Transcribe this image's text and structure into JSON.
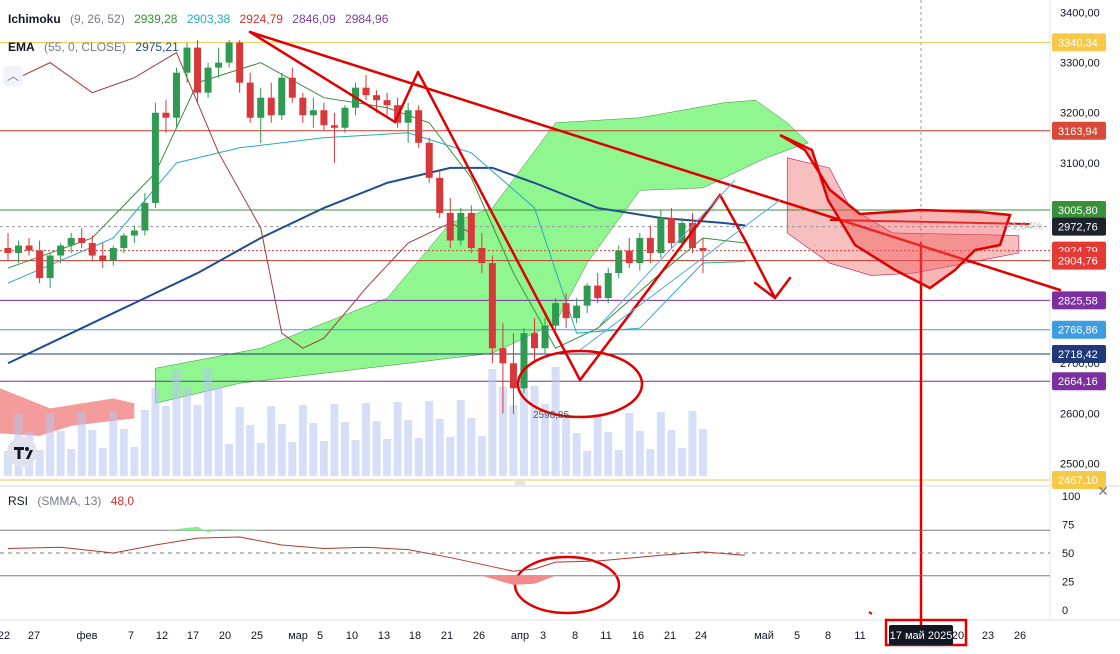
{
  "ichimoku": {
    "name": "Ichimoku",
    "params": "(9, 26, 52)",
    "values": [
      {
        "text": "2939,28",
        "color": "#3b8c3b"
      },
      {
        "text": "2903,38",
        "color": "#2aa8c8"
      },
      {
        "text": "2924,79",
        "color": "#d32f2f"
      },
      {
        "text": "2846,09",
        "color": "#7b3f9e"
      },
      {
        "text": "2984,96",
        "color": "#7b3f9e"
      }
    ]
  },
  "ema": {
    "name": "EMA",
    "params": "(55, 0, CLOSE)",
    "value": "2975,21",
    "color": "#1f4e8c"
  },
  "rsi": {
    "name": "RSI",
    "params": "(SMMA, 13)",
    "value": "48,0",
    "value_color": "#d32f2f"
  },
  "collapse_icon": "chevron-up-icon",
  "close_icon": "close-icon",
  "chart_data": {
    "type": "candlestick",
    "y_axis": {
      "ticks": [
        "3400,00",
        "3300,00",
        "3200,00",
        "3100,00",
        "2700,00",
        "2600,00",
        "2500,00"
      ],
      "tick_values": [
        3400,
        3300,
        3200,
        3100,
        2700,
        2600,
        2500
      ],
      "range": [
        2455,
        3425
      ]
    },
    "price_labels": [
      {
        "text": "3340,34",
        "value": 3340.34,
        "bg": "#f7c948",
        "fg": "#ffffff"
      },
      {
        "text": "3163,94",
        "value": 3163.94,
        "bg": "#d84a37",
        "fg": "#ffffff"
      },
      {
        "text": "3005,80",
        "value": 3005.8,
        "bg": "#3a8f3a",
        "fg": "#ffffff"
      },
      {
        "text": "2972,76",
        "value": 2972.76,
        "bg": "#1e222d",
        "fg": "#ffffff"
      },
      {
        "text": "2924,79",
        "value": 2924.79,
        "bg": "#e53935",
        "fg": "#ffffff"
      },
      {
        "text": "2904,76",
        "value": 2904.76,
        "bg": "#e53935",
        "fg": "#ffffff"
      },
      {
        "text": "2825,58",
        "value": 2825.58,
        "bg": "#7b2fa0",
        "fg": "#ffffff"
      },
      {
        "text": "2766,86",
        "value": 2766.86,
        "bg": "#3d9de0",
        "fg": "#ffffff"
      },
      {
        "text": "2718,42",
        "value": 2718.42,
        "bg": "#1e3a78",
        "fg": "#ffffff"
      },
      {
        "text": "2664,16",
        "value": 2664.16,
        "bg": "#7b2fa0",
        "fg": "#ffffff"
      },
      {
        "text": "2467,10",
        "value": 2467.1,
        "bg": "#f7c948",
        "fg": "#ffffff"
      }
    ],
    "percent_label": "+1,64%",
    "low_marker": "2598,85 →",
    "horizontal_levels": [
      {
        "value": 3340.34,
        "color": "#f2c94c"
      },
      {
        "value": 3163.94,
        "color": "#c0392b"
      },
      {
        "value": 3005.8,
        "color": "#3a8f3a"
      },
      {
        "value": 2904.76,
        "color": "#c0392b"
      },
      {
        "value": 2825.58,
        "color": "#7b2fa0"
      },
      {
        "value": 2766.86,
        "color": "#3d9de0"
      },
      {
        "value": 2718.42,
        "color": "#1e3a78"
      },
      {
        "value": 2664.16,
        "color": "#7b2fa0"
      },
      {
        "value": 2467.1,
        "color": "#f2c94c"
      }
    ],
    "candles": [
      {
        "o": 2930,
        "h": 2960,
        "l": 2905,
        "c": 2920
      },
      {
        "o": 2920,
        "h": 2945,
        "l": 2900,
        "c": 2935
      },
      {
        "o": 2935,
        "h": 2950,
        "l": 2915,
        "c": 2925
      },
      {
        "o": 2925,
        "h": 2945,
        "l": 2860,
        "c": 2870
      },
      {
        "o": 2870,
        "h": 2920,
        "l": 2850,
        "c": 2915
      },
      {
        "o": 2915,
        "h": 2940,
        "l": 2900,
        "c": 2935
      },
      {
        "o": 2935,
        "h": 2960,
        "l": 2920,
        "c": 2950
      },
      {
        "o": 2950,
        "h": 2970,
        "l": 2930,
        "c": 2940
      },
      {
        "o": 2940,
        "h": 2955,
        "l": 2905,
        "c": 2915
      },
      {
        "o": 2915,
        "h": 2940,
        "l": 2890,
        "c": 2905
      },
      {
        "o": 2905,
        "h": 2935,
        "l": 2895,
        "c": 2930
      },
      {
        "o": 2930,
        "h": 2960,
        "l": 2920,
        "c": 2955
      },
      {
        "o": 2955,
        "h": 2975,
        "l": 2940,
        "c": 2965
      },
      {
        "o": 2965,
        "h": 3040,
        "l": 2955,
        "c": 3020
      },
      {
        "o": 3020,
        "h": 3220,
        "l": 3010,
        "c": 3200
      },
      {
        "o": 3200,
        "h": 3225,
        "l": 3160,
        "c": 3190
      },
      {
        "o": 3190,
        "h": 3290,
        "l": 3170,
        "c": 3280
      },
      {
        "o": 3280,
        "h": 3340,
        "l": 3260,
        "c": 3330
      },
      {
        "o": 3330,
        "h": 3345,
        "l": 3220,
        "c": 3240
      },
      {
        "o": 3240,
        "h": 3300,
        "l": 3230,
        "c": 3290
      },
      {
        "o": 3290,
        "h": 3330,
        "l": 3270,
        "c": 3300
      },
      {
        "o": 3300,
        "h": 3345,
        "l": 3290,
        "c": 3340
      },
      {
        "o": 3340,
        "h": 3345,
        "l": 3240,
        "c": 3260
      },
      {
        "o": 3260,
        "h": 3280,
        "l": 3180,
        "c": 3190
      },
      {
        "o": 3190,
        "h": 3250,
        "l": 3140,
        "c": 3230
      },
      {
        "o": 3230,
        "h": 3260,
        "l": 3180,
        "c": 3195
      },
      {
        "o": 3195,
        "h": 3280,
        "l": 3185,
        "c": 3270
      },
      {
        "o": 3270,
        "h": 3290,
        "l": 3220,
        "c": 3230
      },
      {
        "o": 3230,
        "h": 3240,
        "l": 3180,
        "c": 3195
      },
      {
        "o": 3195,
        "h": 3230,
        "l": 3170,
        "c": 3205
      },
      {
        "o": 3205,
        "h": 3220,
        "l": 3165,
        "c": 3175
      },
      {
        "o": 3175,
        "h": 3200,
        "l": 3100,
        "c": 3170
      },
      {
        "o": 3170,
        "h": 3215,
        "l": 3160,
        "c": 3210
      },
      {
        "o": 3210,
        "h": 3260,
        "l": 3195,
        "c": 3250
      },
      {
        "o": 3250,
        "h": 3275,
        "l": 3225,
        "c": 3235
      },
      {
        "o": 3235,
        "h": 3245,
        "l": 3200,
        "c": 3225
      },
      {
        "o": 3225,
        "h": 3240,
        "l": 3195,
        "c": 3215
      },
      {
        "o": 3215,
        "h": 3230,
        "l": 3170,
        "c": 3180
      },
      {
        "o": 3180,
        "h": 3220,
        "l": 3140,
        "c": 3205
      },
      {
        "o": 3205,
        "h": 3215,
        "l": 3130,
        "c": 3140
      },
      {
        "o": 3140,
        "h": 3150,
        "l": 3060,
        "c": 3070
      },
      {
        "o": 3070,
        "h": 3085,
        "l": 2990,
        "c": 3000
      },
      {
        "o": 3000,
        "h": 3030,
        "l": 2930,
        "c": 2945
      },
      {
        "o": 2945,
        "h": 3010,
        "l": 2935,
        "c": 3000
      },
      {
        "o": 3000,
        "h": 3015,
        "l": 2920,
        "c": 2930
      },
      {
        "o": 2930,
        "h": 2960,
        "l": 2880,
        "c": 2900
      },
      {
        "o": 2900,
        "h": 2915,
        "l": 2700,
        "c": 2730
      },
      {
        "o": 2730,
        "h": 2780,
        "l": 2600,
        "c": 2700
      },
      {
        "o": 2700,
        "h": 2760,
        "l": 2598.85,
        "c": 2650
      },
      {
        "o": 2650,
        "h": 2770,
        "l": 2640,
        "c": 2760
      },
      {
        "o": 2760,
        "h": 2790,
        "l": 2700,
        "c": 2730
      },
      {
        "o": 2730,
        "h": 2790,
        "l": 2720,
        "c": 2775
      },
      {
        "o": 2775,
        "h": 2830,
        "l": 2765,
        "c": 2820
      },
      {
        "o": 2820,
        "h": 2840,
        "l": 2770,
        "c": 2790
      },
      {
        "o": 2790,
        "h": 2830,
        "l": 2780,
        "c": 2815
      },
      {
        "o": 2815,
        "h": 2860,
        "l": 2800,
        "c": 2855
      },
      {
        "o": 2855,
        "h": 2880,
        "l": 2820,
        "c": 2830
      },
      {
        "o": 2830,
        "h": 2890,
        "l": 2820,
        "c": 2880
      },
      {
        "o": 2880,
        "h": 2935,
        "l": 2870,
        "c": 2925
      },
      {
        "o": 2925,
        "h": 2950,
        "l": 2890,
        "c": 2900
      },
      {
        "o": 2900,
        "h": 2960,
        "l": 2885,
        "c": 2950
      },
      {
        "o": 2950,
        "h": 2975,
        "l": 2900,
        "c": 2920
      },
      {
        "o": 2920,
        "h": 3005,
        "l": 2910,
        "c": 2990
      },
      {
        "o": 2990,
        "h": 3010,
        "l": 2930,
        "c": 2940
      },
      {
        "o": 2940,
        "h": 2990,
        "l": 2930,
        "c": 2980
      },
      {
        "o": 2980,
        "h": 3000,
        "l": 2920,
        "c": 2930
      },
      {
        "o": 2930,
        "h": 2950,
        "l": 2880,
        "c": 2924.79
      }
    ],
    "x_labels": [
      "22",
      "27",
      "фев",
      "7",
      "12",
      "17",
      "20",
      "25",
      "мар",
      "5",
      "10",
      "13",
      "18",
      "21",
      "26",
      "апр",
      "3",
      "8",
      "11",
      "16",
      "21",
      "24",
      "май",
      "5",
      "8",
      "11",
      "20",
      "23",
      "26"
    ],
    "x_label_positions": [
      4,
      34,
      87,
      131,
      162,
      193,
      225,
      257,
      298,
      320,
      352,
      384,
      415,
      447,
      479,
      520,
      543,
      575,
      606,
      638,
      670,
      701,
      764,
      797,
      828,
      860,
      958,
      988,
      1020
    ],
    "highlighted_date": "17 май 2025",
    "rsi_axis": [
      "100",
      "75",
      "50",
      "25",
      "0"
    ],
    "rsi_axis_values": [
      100,
      75,
      50,
      25,
      0
    ]
  }
}
